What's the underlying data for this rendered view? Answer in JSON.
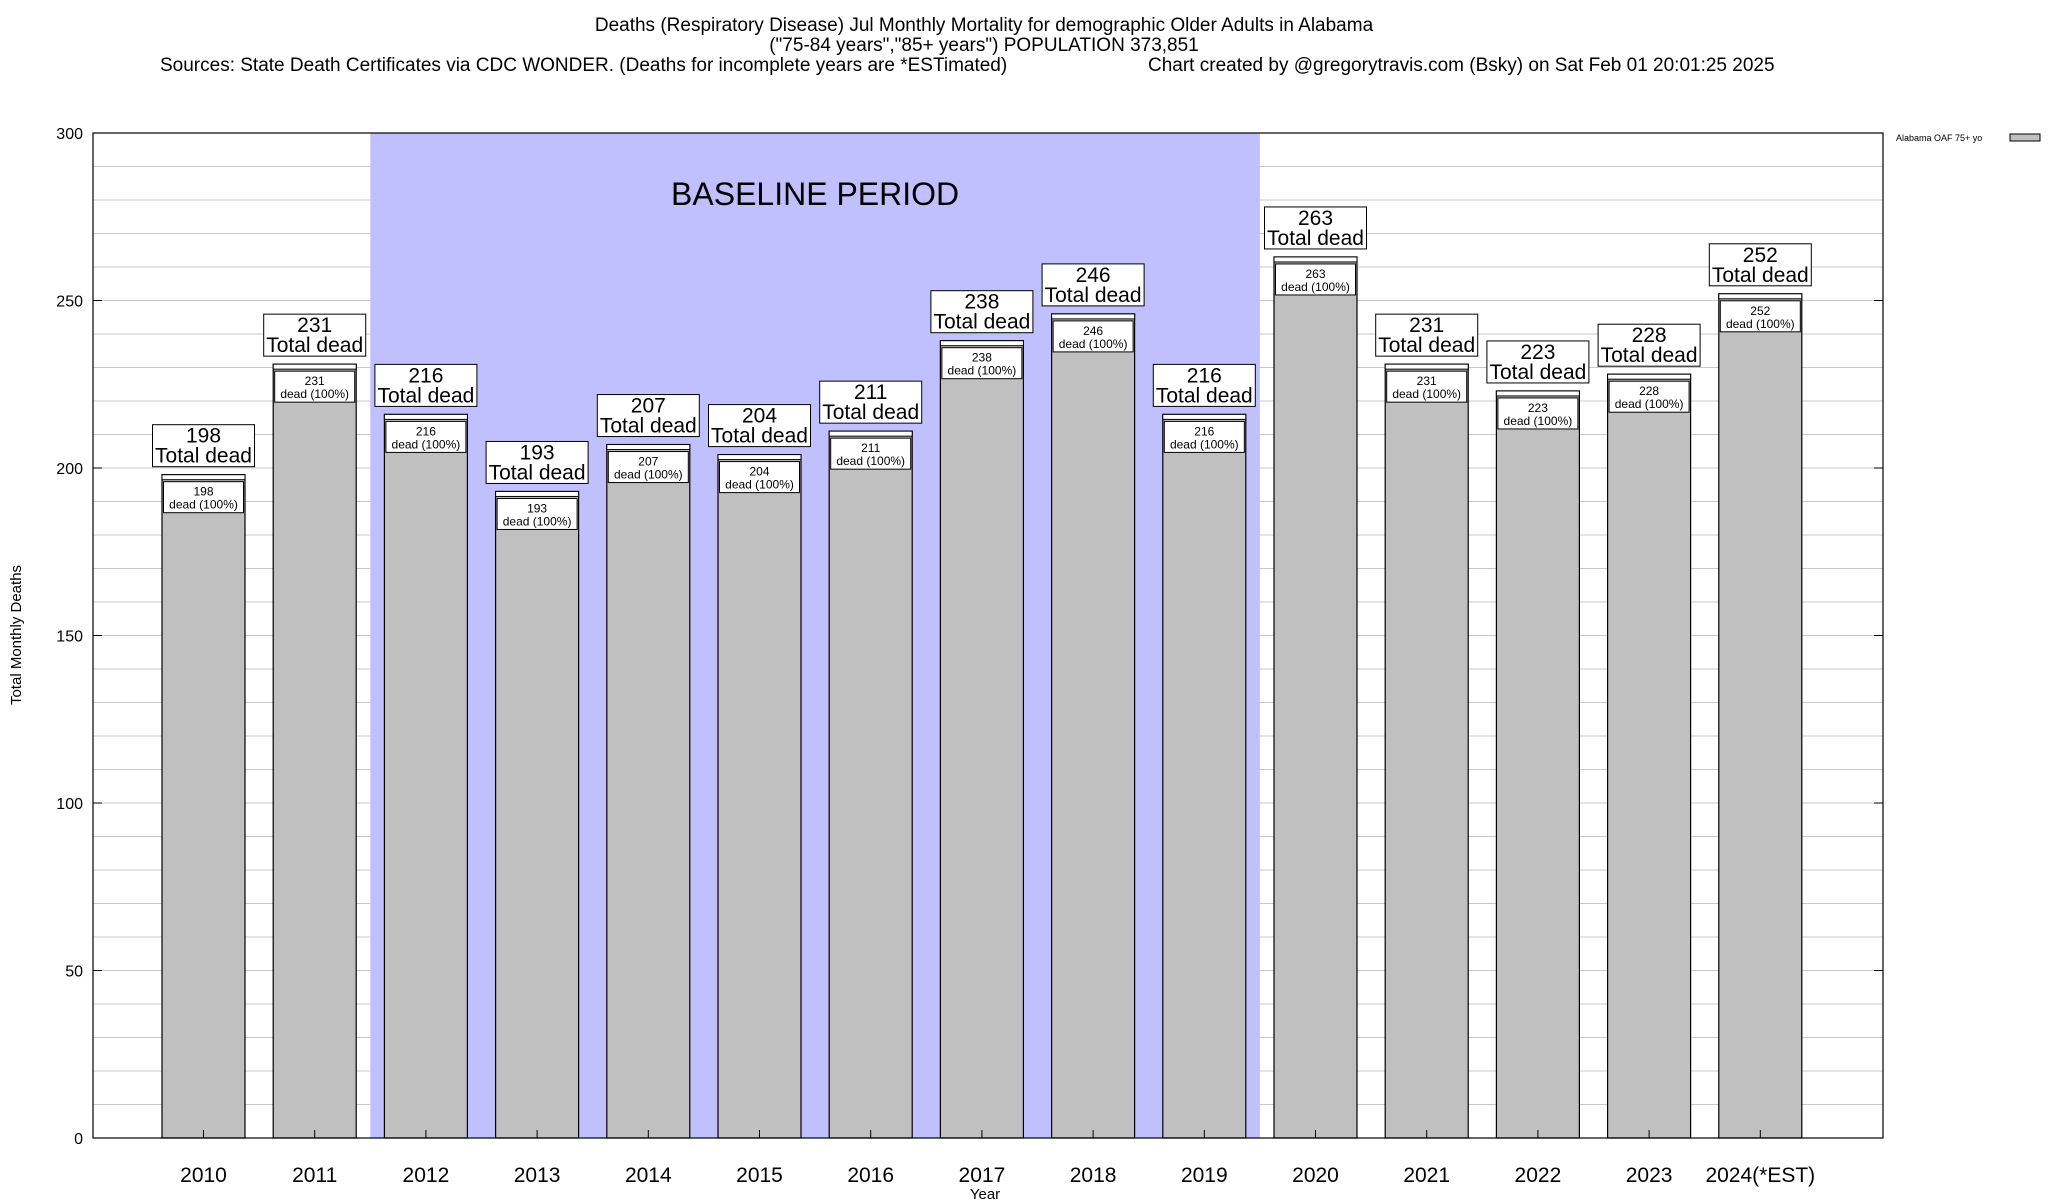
{
  "header": {
    "title_line1": "Deaths (Respiratory Disease) Jul Monthly Mortality for demographic Older Adults in Alabama",
    "title_line2": "(\"75-84 years\",\"85+ years\") POPULATION 373,851",
    "sources": "Sources: State Death Certificates via CDC WONDER. (Deaths for incomplete years are *ESTimated)",
    "credit": "Chart created by @gregorytravis.com (Bsky) on Sat Feb 01 20:01:25 2025"
  },
  "chart_data": {
    "type": "bar",
    "xlabel": "Year",
    "ylabel": "Total Monthly Deaths",
    "ylim": [
      0,
      300
    ],
    "y_ticks": [
      0,
      50,
      100,
      150,
      200,
      250,
      300
    ],
    "grid": true,
    "legend": {
      "position": "top-right",
      "label": "Alabama OAF 75+ yo"
    },
    "categories": [
      "2010",
      "2011",
      "2012",
      "2013",
      "2014",
      "2015",
      "2016",
      "2017",
      "2018",
      "2019",
      "2020",
      "2021",
      "2022",
      "2023",
      "2024(*EST)"
    ],
    "series": [
      {
        "name": "Alabama OAF 75+ yo",
        "values": [
          198,
          231,
          216,
          193,
          207,
          204,
          211,
          238,
          246,
          216,
          263,
          231,
          223,
          228,
          252
        ]
      }
    ],
    "top_label_suffix": "Total dead",
    "inner_label_suffix": "dead (100%)",
    "baseline": {
      "label": "BASELINE PERIOD",
      "from": "2012",
      "to": "2019"
    }
  },
  "colors": {
    "bar_fill": "#c0c0c0",
    "baseline_band": "#c0c0ff",
    "grid": "#c8c8c8"
  }
}
